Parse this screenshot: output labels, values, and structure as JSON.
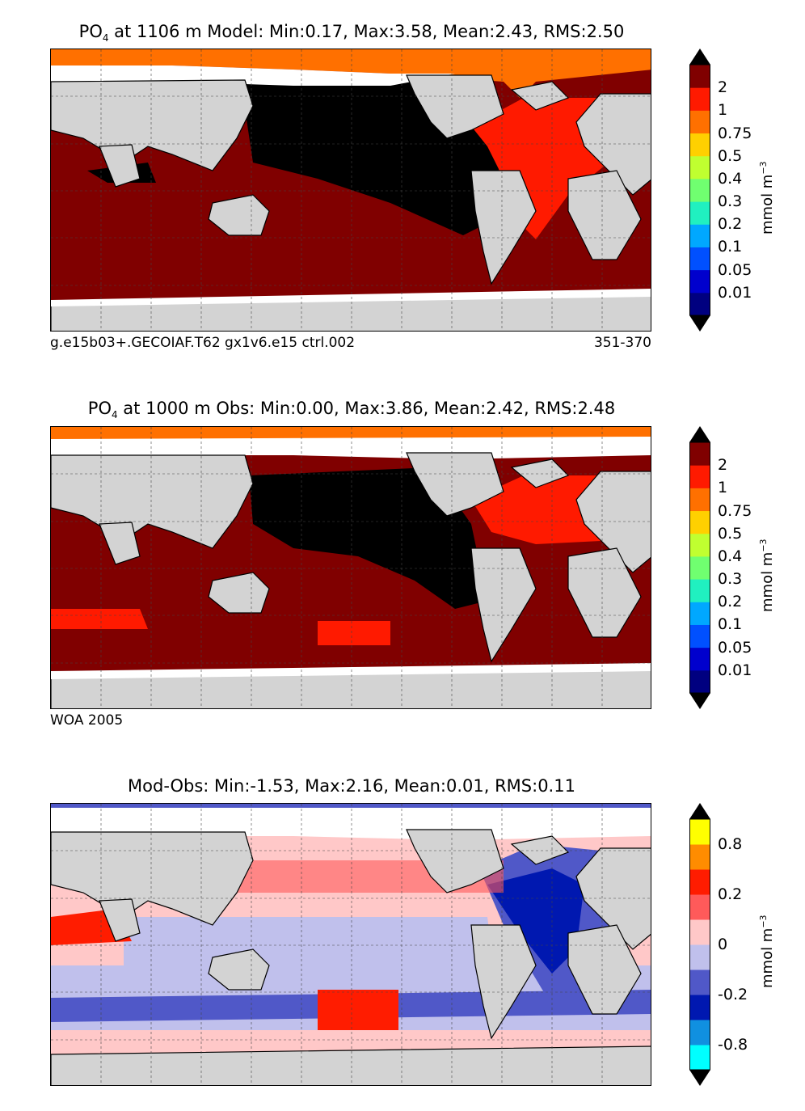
{
  "panels": [
    {
      "title_prefix": "PO",
      "title_sub": "4",
      "title_rest": " at 1106 m Model: Min:0.17, Max:3.58, Mean:2.43, RMS:2.50",
      "footer_left": "g.e15b03+.GECOIAF.T62 gx1v6.e15 ctrl.002",
      "footer_right": "351-370",
      "colorbar_ticks": [
        "2",
        "1",
        "0.75",
        "0.5",
        "0.4",
        "0.3",
        "0.2",
        "0.1",
        "0.05",
        "0.01"
      ],
      "colorbar_unit": "mmol m",
      "colorbar_unit_sup": "−3",
      "colors": [
        "#000080",
        "#0000cd",
        "#0050ff",
        "#00a8ff",
        "#20f0c0",
        "#70ff70",
        "#c0ff30",
        "#ffd000",
        "#ff7000",
        "#ff1a00",
        "#800000"
      ]
    },
    {
      "title_prefix": "PO",
      "title_sub": "4",
      "title_rest": " at 1000 m Obs: Min:0.00, Max:3.86, Mean:2.42, RMS:2.48",
      "footer_left": "WOA 2005",
      "footer_right": "",
      "colorbar_ticks": [
        "2",
        "1",
        "0.75",
        "0.5",
        "0.4",
        "0.3",
        "0.2",
        "0.1",
        "0.05",
        "0.01"
      ],
      "colorbar_unit": "mmol m",
      "colorbar_unit_sup": "−3",
      "colors": [
        "#000080",
        "#0000cd",
        "#0050ff",
        "#00a8ff",
        "#20f0c0",
        "#70ff70",
        "#c0ff30",
        "#ffd000",
        "#ff7000",
        "#ff1a00",
        "#800000"
      ]
    },
    {
      "title_prefix": "Mod-Obs: Min:-1.53, Max:2.16, Mean:0.01, RMS:0.11",
      "title_sub": "",
      "title_rest": "",
      "footer_left": "",
      "footer_right": "",
      "colorbar_ticks": [
        "0.8",
        "0.2",
        "0",
        "-0.2",
        "-0.8"
      ],
      "colorbar_unit": "mmol m",
      "colorbar_unit_sup": "−3",
      "colors": [
        "#00ffff",
        "#1090e0",
        "#0018b0",
        "#5058c8",
        "#c0c0ec",
        "#ffc8c8",
        "#ff5a5a",
        "#ff1c00",
        "#ff8c00",
        "#ffff00"
      ]
    }
  ],
  "map_colors": {
    "land": "#d3d3d3",
    "missing": "#ffffff",
    "coast": "#000000",
    "pacific_core": "#000000"
  }
}
